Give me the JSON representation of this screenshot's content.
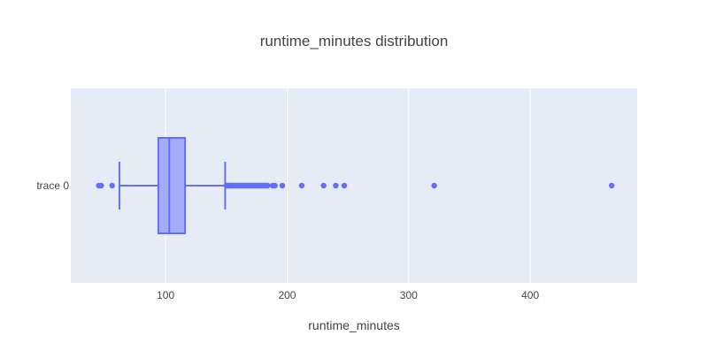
{
  "chart_data": {
    "type": "box",
    "orientation": "horizontal",
    "title": "runtime_minutes distribution",
    "xlabel": "runtime_minutes",
    "ylabel": "",
    "xlim": [
      22,
      488
    ],
    "x_ticks": [
      100,
      200,
      300,
      400
    ],
    "grid": true,
    "legend": "none",
    "colors": {
      "plot_bg": "#E5ECF6",
      "grid": "#FFFFFF",
      "box_fill": "#A4ABF9",
      "box_line": "#636EFA",
      "outlier": "#636EFA"
    },
    "series": [
      {
        "name": "trace 0",
        "lower_fence": 62,
        "q1": 94,
        "median": 103,
        "q3": 116,
        "upper_fence": 149,
        "outliers": [
          45,
          47,
          56,
          150,
          151,
          152,
          153,
          154,
          155,
          156,
          157,
          158,
          159,
          160,
          161,
          162,
          163,
          164,
          165,
          166,
          167,
          168,
          169,
          170,
          171,
          172,
          173,
          174,
          175,
          176,
          177,
          178,
          179,
          180,
          181,
          182,
          183,
          184,
          188,
          190,
          196,
          212,
          230,
          240,
          247,
          321,
          467
        ]
      }
    ]
  }
}
